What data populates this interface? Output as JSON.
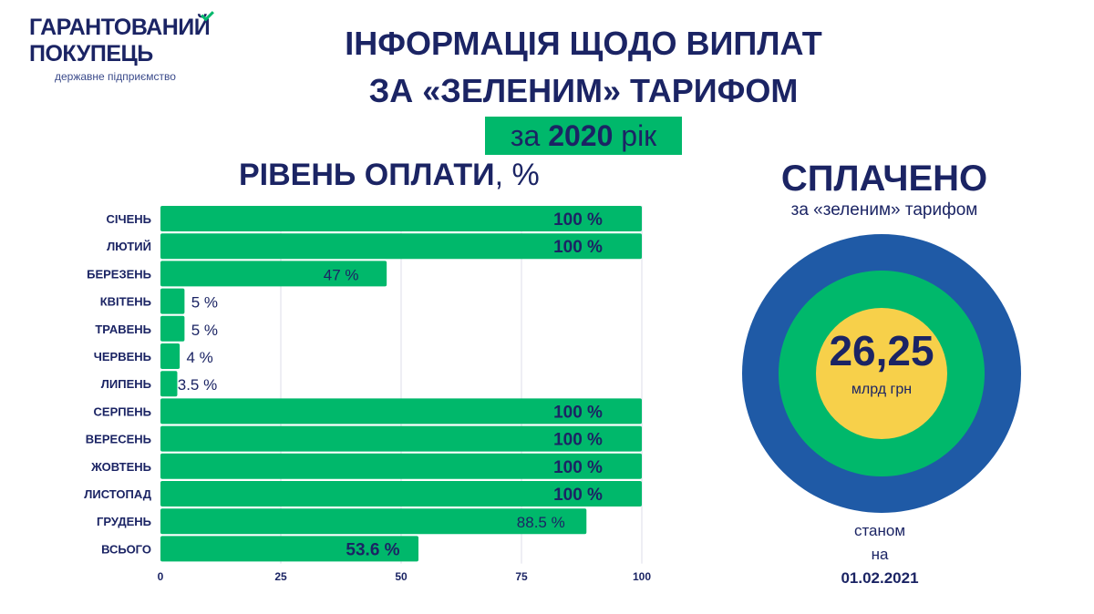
{
  "logo": {
    "line1": "ГАРАНТОВАНИЙ",
    "line2": "ПОКУПЕЦЬ",
    "tagline": "державне підприємство"
  },
  "title": {
    "line1": "ІНФОРМАЦІЯ ЩОДО ВИПЛАТ",
    "line2": "ЗА «ЗЕЛЕНИМ» ТАРИФОМ",
    "year_prefix": "за ",
    "year": "2020",
    "year_suffix": " рік"
  },
  "colors": {
    "navy": "#1b2464",
    "green": "#00b86b",
    "blue": "#1f5aa6",
    "yellow": "#f7d04a"
  },
  "chart_data": {
    "type": "bar",
    "orientation": "horizontal",
    "title": "РІВЕНЬ ОПЛАТИ",
    "title_unit": ", %",
    "categories": [
      "СІЧЕНЬ",
      "ЛЮТИЙ",
      "БЕРЕЗЕНЬ",
      "КВІТЕНЬ",
      "ТРАВЕНЬ",
      "ЧЕРВЕНЬ",
      "ЛИПЕНЬ",
      "СЕРПЕНЬ",
      "ВЕРЕСЕНЬ",
      "ЖОВТЕНЬ",
      "ЛИСТОПАД",
      "ГРУДЕНЬ",
      "ВСЬОГО"
    ],
    "values": [
      100,
      100,
      47,
      5,
      5,
      4,
      3.5,
      100,
      100,
      100,
      100,
      88.5,
      53.6
    ],
    "labels": [
      "100 %",
      "100 %",
      "47 %",
      "5 %",
      "5 %",
      "4 %",
      "3.5 %",
      "100 %",
      "100 %",
      "100 %",
      "100 %",
      "88.5 %",
      "53.6 %"
    ],
    "xlim": [
      0,
      100
    ],
    "xticks": [
      0,
      25,
      50,
      75,
      100
    ],
    "grid": true
  },
  "summary": {
    "title": "СПЛАЧЕНО",
    "subtitle": "за  «зеленим» тарифом",
    "amount": "26,25",
    "unit": "млрд грн",
    "asof1": "станом",
    "asof2": "на",
    "date": "01.02.2021"
  }
}
